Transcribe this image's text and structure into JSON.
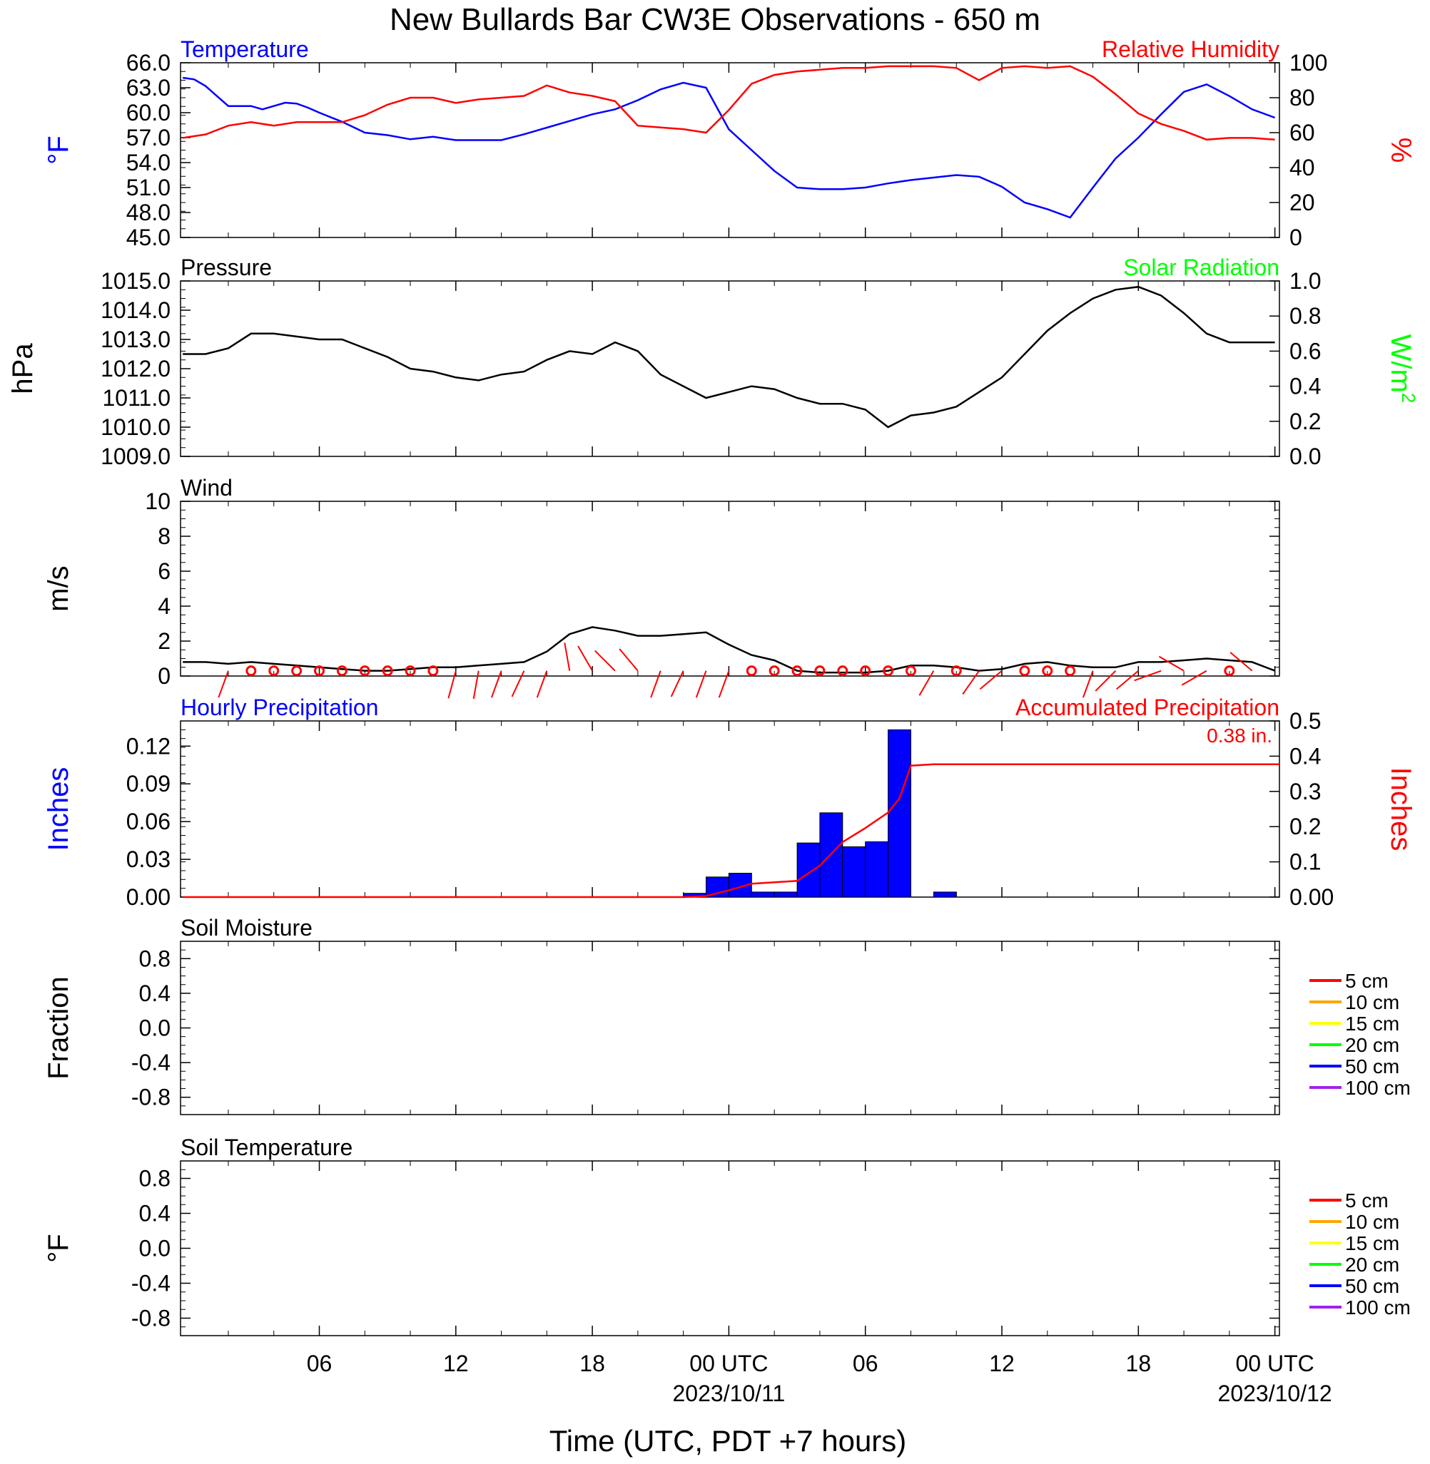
{
  "title": "New Bullards Bar CW3E Observations - 650 m",
  "colors": {
    "temperature": "#0000ff",
    "humidity": "#ff0000",
    "pressure": "#000000",
    "solar": "#00ff00",
    "wind": "#000000",
    "wind_barb": "#ff0000",
    "precip_bar": "#0000ff",
    "precip_accum": "#ff0000"
  },
  "x_axis": {
    "label": "Time (UTC, PDT +7 hours)",
    "range_hours": [
      -0.1,
      48.2
    ],
    "ticks": [
      {
        "h": 6,
        "label": "06",
        "date": ""
      },
      {
        "h": 12,
        "label": "12",
        "date": ""
      },
      {
        "h": 18,
        "label": "18",
        "date": ""
      },
      {
        "h": 24,
        "label": "00 UTC",
        "date": "2023/10/11"
      },
      {
        "h": 30,
        "label": "06",
        "date": ""
      },
      {
        "h": 36,
        "label": "12",
        "date": ""
      },
      {
        "h": 42,
        "label": "18",
        "date": ""
      },
      {
        "h": 48,
        "label": "00 UTC",
        "date": "2023/10/12"
      }
    ]
  },
  "panels": {
    "temp_rh": {
      "left_title": "Temperature",
      "right_title": "Relative Humidity",
      "left_unit": "°F",
      "right_unit": "%",
      "left_ticks": [
        "66.0",
        "63.0",
        "60.0",
        "57.0",
        "54.0",
        "51.0",
        "48.0",
        "45.0"
      ],
      "right_ticks": [
        "100",
        "80",
        "60",
        "40",
        "20",
        "0"
      ]
    },
    "pressure": {
      "left_title": "Pressure",
      "right_title": "Solar Radiation",
      "left_unit": "hPa",
      "right_unit": "W/m",
      "right_unit_sup": "2",
      "left_ticks": [
        "1015.0",
        "1014.0",
        "1013.0",
        "1012.0",
        "1011.0",
        "1010.0",
        "1009.0"
      ],
      "right_ticks": [
        "1.0",
        "0.8",
        "0.6",
        "0.4",
        "0.2",
        "0.0"
      ]
    },
    "wind": {
      "left_title": "Wind",
      "left_unit": "m/s",
      "left_ticks": [
        "10",
        "8",
        "6",
        "4",
        "2",
        "0"
      ]
    },
    "precip": {
      "left_title": "Hourly Precipitation",
      "right_title": "Accumulated Precipitation",
      "left_unit": "Inches",
      "right_unit": "Inches",
      "total_label": "0.38 in.",
      "left_ticks": [
        "0.12",
        "0.09",
        "0.06",
        "0.03",
        "0.00"
      ],
      "right_ticks": [
        "0.5",
        "0.4",
        "0.3",
        "0.2",
        "0.1",
        "0.00"
      ]
    },
    "soil_moisture": {
      "left_title": "Soil Moisture",
      "left_unit": "Fraction",
      "left_ticks": [
        "0.8",
        "0.4",
        "0.0",
        "-0.4",
        "-0.8"
      ],
      "legend": [
        {
          "label": "5 cm",
          "color": "#ff0000"
        },
        {
          "label": "10 cm",
          "color": "#ffa500"
        },
        {
          "label": "15 cm",
          "color": "#ffff00"
        },
        {
          "label": "20 cm",
          "color": "#00ff00"
        },
        {
          "label": "50 cm",
          "color": "#0000ff"
        },
        {
          "label": "100 cm",
          "color": "#a020f0"
        }
      ]
    },
    "soil_temp": {
      "left_title": "Soil Temperature",
      "left_unit": "°F",
      "left_ticks": [
        "0.8",
        "0.4",
        "0.0",
        "-0.4",
        "-0.8"
      ],
      "legend": [
        {
          "label": "5 cm",
          "color": "#ff0000"
        },
        {
          "label": "10 cm",
          "color": "#ffa500"
        },
        {
          "label": "15 cm",
          "color": "#ffff00"
        },
        {
          "label": "20 cm",
          "color": "#00ff00"
        },
        {
          "label": "50 cm",
          "color": "#0000ff"
        },
        {
          "label": "100 cm",
          "color": "#a020f0"
        }
      ]
    }
  },
  "chart_data": [
    {
      "type": "line",
      "title": "Temperature",
      "ylabel": "°F",
      "ylim": [
        45,
        66
      ],
      "x_unit": "hours since 2023/10/10 00 UTC",
      "series": [
        {
          "name": "Temperature",
          "x": [
            0,
            0.5,
            1,
            1.5,
            2,
            2.5,
            3,
            3.5,
            4,
            4.5,
            5,
            5.5,
            6,
            7,
            8,
            9,
            10,
            11,
            12,
            13,
            14,
            15,
            16,
            17,
            18,
            19,
            20,
            21,
            22,
            23,
            24,
            25,
            26,
            27,
            28,
            29,
            30,
            31,
            32,
            33,
            34,
            35,
            36,
            37,
            38,
            39,
            40,
            41,
            42,
            43,
            44,
            45,
            46,
            47,
            48
          ],
          "y": [
            64.2,
            64.0,
            63.2,
            62.0,
            60.8,
            60.8,
            60.8,
            60.4,
            60.8,
            61.2,
            61.1,
            60.6,
            60.0,
            58.9,
            57.6,
            57.3,
            56.8,
            57.1,
            56.7,
            56.7,
            56.7,
            57.4,
            58.2,
            59.0,
            59.8,
            60.4,
            61.5,
            62.8,
            63.6,
            63.0,
            58.0,
            55.5,
            53.0,
            51.0,
            50.8,
            50.8,
            51.0,
            51.5,
            51.9,
            52.2,
            52.5,
            52.3,
            51.1,
            49.2,
            48.4,
            47.4,
            51.0,
            54.5,
            57.0,
            59.8,
            62.5,
            63.4,
            62.0,
            60.4,
            59.4
          ]
        },
        {
          "name": "Relative Humidity",
          "axis": "right",
          "ylim": [
            0,
            100
          ],
          "x": [
            0,
            1,
            2,
            3,
            4,
            5,
            6,
            7,
            8,
            9,
            10,
            11,
            12,
            13,
            14,
            15,
            16,
            17,
            18,
            19,
            20,
            21,
            22,
            23,
            24,
            25,
            26,
            27,
            28,
            29,
            30,
            31,
            32,
            33,
            34,
            35,
            36,
            37,
            38,
            39,
            40,
            41,
            42,
            43,
            44,
            45,
            46,
            47,
            48
          ],
          "y": [
            57,
            59,
            64,
            66,
            64,
            66,
            66,
            66,
            70,
            76,
            80,
            80,
            77,
            79,
            80,
            81,
            87,
            83,
            81,
            78,
            64,
            63,
            62,
            60,
            73,
            88,
            93,
            95,
            96,
            97,
            97,
            98,
            98,
            98,
            97,
            90,
            97,
            98,
            97,
            98,
            92,
            82,
            71,
            65,
            61,
            56,
            57,
            57,
            56
          ]
        }
      ]
    },
    {
      "type": "line",
      "title": "Pressure",
      "ylabel": "hPa",
      "ylim": [
        1009,
        1015
      ],
      "series": [
        {
          "name": "Pressure",
          "x": [
            0,
            1,
            2,
            3,
            4,
            5,
            6,
            7,
            8,
            9,
            10,
            11,
            12,
            13,
            14,
            15,
            16,
            17,
            18,
            19,
            20,
            21,
            22,
            23,
            24,
            25,
            26,
            27,
            28,
            29,
            30,
            31,
            32,
            33,
            34,
            35,
            36,
            37,
            38,
            39,
            40,
            41,
            42,
            43,
            44,
            45,
            46,
            47,
            48
          ],
          "y": [
            1012.5,
            1012.5,
            1012.7,
            1013.2,
            1013.2,
            1013.1,
            1013.0,
            1013.0,
            1012.7,
            1012.4,
            1012.0,
            1011.9,
            1011.7,
            1011.6,
            1011.8,
            1011.9,
            1012.3,
            1012.6,
            1012.5,
            1012.9,
            1012.6,
            1011.8,
            1011.4,
            1011.0,
            1011.2,
            1011.4,
            1011.3,
            1011.0,
            1010.8,
            1010.8,
            1010.6,
            1010.0,
            1010.4,
            1010.5,
            1010.7,
            1011.2,
            1011.7,
            1012.5,
            1013.3,
            1013.9,
            1014.4,
            1014.7,
            1014.8,
            1014.5,
            1013.9,
            1013.2,
            1012.9,
            1012.9,
            1012.9
          ]
        }
      ]
    },
    {
      "type": "line",
      "title": "Wind",
      "ylabel": "m/s",
      "ylim": [
        0,
        10
      ],
      "series": [
        {
          "name": "Wind",
          "x": [
            0,
            1,
            2,
            3,
            4,
            5,
            6,
            7,
            8,
            9,
            10,
            11,
            12,
            13,
            14,
            15,
            16,
            17,
            18,
            19,
            20,
            21,
            22,
            23,
            24,
            25,
            26,
            27,
            28,
            29,
            30,
            31,
            32,
            33,
            34,
            35,
            36,
            37,
            38,
            39,
            40,
            41,
            42,
            43,
            44,
            45,
            46,
            47,
            48
          ],
          "y": [
            0.8,
            0.8,
            0.7,
            0.8,
            0.7,
            0.6,
            0.5,
            0.4,
            0.3,
            0.3,
            0.4,
            0.5,
            0.5,
            0.6,
            0.7,
            0.8,
            1.4,
            2.4,
            2.8,
            2.6,
            2.3,
            2.3,
            2.4,
            2.5,
            1.8,
            1.2,
            0.9,
            0.3,
            0.2,
            0.2,
            0.2,
            0.3,
            0.6,
            0.6,
            0.5,
            0.3,
            0.4,
            0.7,
            0.8,
            0.6,
            0.5,
            0.5,
            0.8,
            0.8,
            0.9,
            1.0,
            0.9,
            0.8,
            0.3
          ]
        }
      ]
    },
    {
      "type": "bar",
      "title": "Hourly Precipitation",
      "ylabel": "Inches",
      "ylim": [
        0,
        0.14
      ],
      "categories": [
        "22",
        "23",
        "00",
        "01",
        "02",
        "03",
        "04",
        "05",
        "06",
        "07",
        "08",
        "09",
        "10"
      ],
      "x": [
        22,
        23,
        24,
        25,
        26,
        27,
        28,
        29,
        30,
        31,
        32,
        33,
        34
      ],
      "values": [
        0.003,
        0.016,
        0.019,
        0.004,
        0.004,
        0.043,
        0.067,
        0.04,
        0.044,
        0.133,
        0,
        0.004,
        0
      ],
      "series": [
        {
          "name": "Accumulated Precipitation",
          "axis": "right",
          "ylim": [
            0,
            0.5
          ],
          "x": [
            0,
            22,
            23,
            24,
            25,
            26,
            27,
            28,
            29,
            30,
            31,
            31.5,
            32,
            33,
            48.2
          ],
          "y": [
            0,
            0,
            0.003,
            0.019,
            0.038,
            0.042,
            0.046,
            0.089,
            0.156,
            0.196,
            0.24,
            0.28,
            0.373,
            0.377,
            0.377
          ]
        }
      ]
    },
    {
      "type": "line",
      "title": "Soil Moisture",
      "ylabel": "Fraction",
      "ylim": [
        -1,
        1
      ],
      "series": []
    },
    {
      "type": "line",
      "title": "Soil Temperature",
      "ylabel": "°F",
      "ylim": [
        -1,
        1
      ],
      "series": []
    }
  ],
  "wind_barbs": {
    "note": "",
    "calm_hours": [
      3,
      4,
      5,
      6,
      7,
      8,
      9,
      10,
      11,
      25,
      26,
      27,
      28,
      29,
      30,
      31,
      32,
      34,
      37,
      38,
      39,
      46
    ],
    "barbs": [
      {
        "h": 2,
        "dir": 200
      },
      {
        "h": 12,
        "dir": 195
      },
      {
        "h": 13,
        "dir": 190
      },
      {
        "h": 14,
        "dir": 200
      },
      {
        "h": 15,
        "dir": 205
      },
      {
        "h": 16,
        "dir": 200
      },
      {
        "h": 17,
        "dir": 350
      },
      {
        "h": 18,
        "dir": 330
      },
      {
        "h": 19,
        "dir": 315
      },
      {
        "h": 20,
        "dir": 320
      },
      {
        "h": 21,
        "dir": 200
      },
      {
        "h": 22,
        "dir": 205
      },
      {
        "h": 23,
        "dir": 200
      },
      {
        "h": 24,
        "dir": 200
      },
      {
        "h": 33,
        "dir": 210
      },
      {
        "h": 35,
        "dir": 215
      },
      {
        "h": 36,
        "dir": 230
      },
      {
        "h": 40,
        "dir": 200
      },
      {
        "h": 41,
        "dir": 225
      },
      {
        "h": 42,
        "dir": 230
      },
      {
        "h": 43,
        "dir": 250
      },
      {
        "h": 44,
        "dir": 300
      },
      {
        "h": 45,
        "dir": 240
      },
      {
        "h": 47,
        "dir": 310
      }
    ]
  }
}
